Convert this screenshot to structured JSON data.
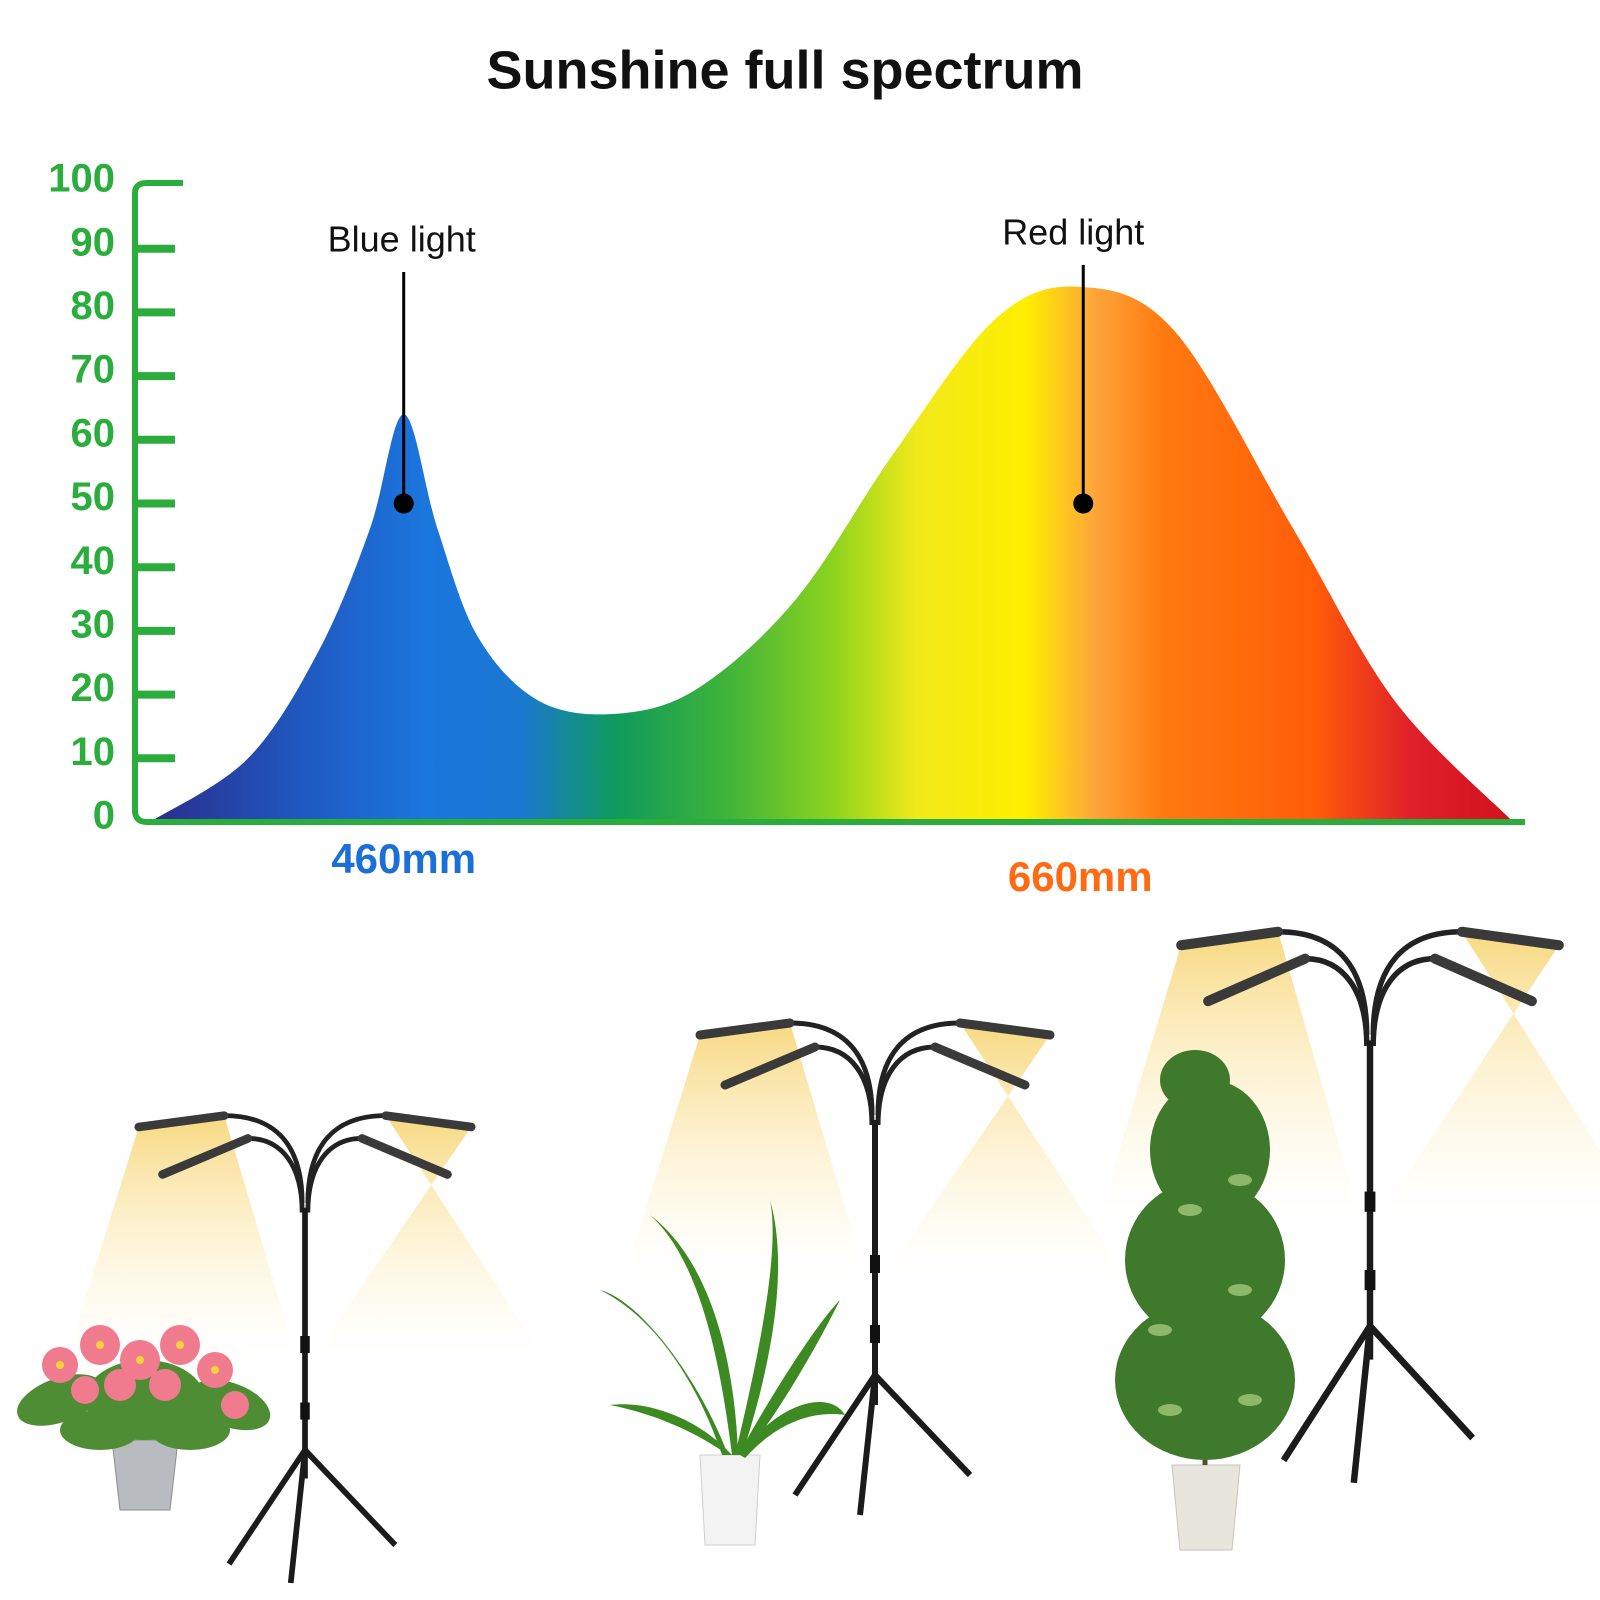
{
  "chart_data": {
    "type": "area",
    "title": "Sunshine full spectrum",
    "x": [
      385,
      414,
      435,
      450,
      460,
      470,
      482,
      500,
      523,
      547,
      576,
      605,
      635,
      660,
      688,
      723,
      753,
      788
    ],
    "values": [
      0,
      10,
      27,
      46,
      64,
      46,
      29,
      19,
      17,
      21,
      35,
      58,
      79,
      84,
      77,
      46,
      19,
      0
    ],
    "xlim": [
      385,
      790
    ],
    "xticks": [
      {
        "value": 460,
        "label": "460mm",
        "color": "#1b6fd6"
      },
      {
        "value": 660,
        "label": "660mm",
        "color": "#ff6a13"
      }
    ],
    "ylim": [
      0,
      100
    ],
    "yticks": [
      0,
      10,
      20,
      30,
      40,
      50,
      60,
      70,
      80,
      90,
      100
    ],
    "axis_color": "#2aad3c",
    "annotations": [
      {
        "text": "Blue light",
        "x": 460,
        "y": 50
      },
      {
        "text": "Red light",
        "x": 660,
        "y": 50
      }
    ]
  }
}
